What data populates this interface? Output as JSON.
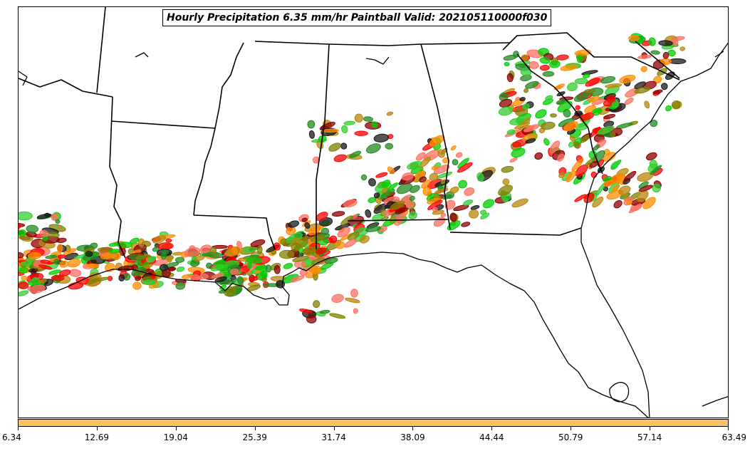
{
  "title": "Hourly Precipitation 6.35 mm/hr Paintball Valid: 202105110000f030",
  "colorbar": {
    "fill_color": "#ffc25e",
    "ticks": [
      "6.34",
      "12.69",
      "19.04",
      "25.39",
      "31.74",
      "38.09",
      "44.44",
      "50.79",
      "57.14",
      "63.49"
    ]
  },
  "map": {
    "region": "Southeastern United States",
    "land_color": "#ffffff",
    "boundary_color": "#000000",
    "paintball_colors": [
      "#ff0000",
      "#ff8c00",
      "#8b0000",
      "#228b22",
      "#00cc00",
      "#808000",
      "#1a1a1a",
      "#ff6f61",
      "#b8860b",
      "#32cd32"
    ]
  }
}
